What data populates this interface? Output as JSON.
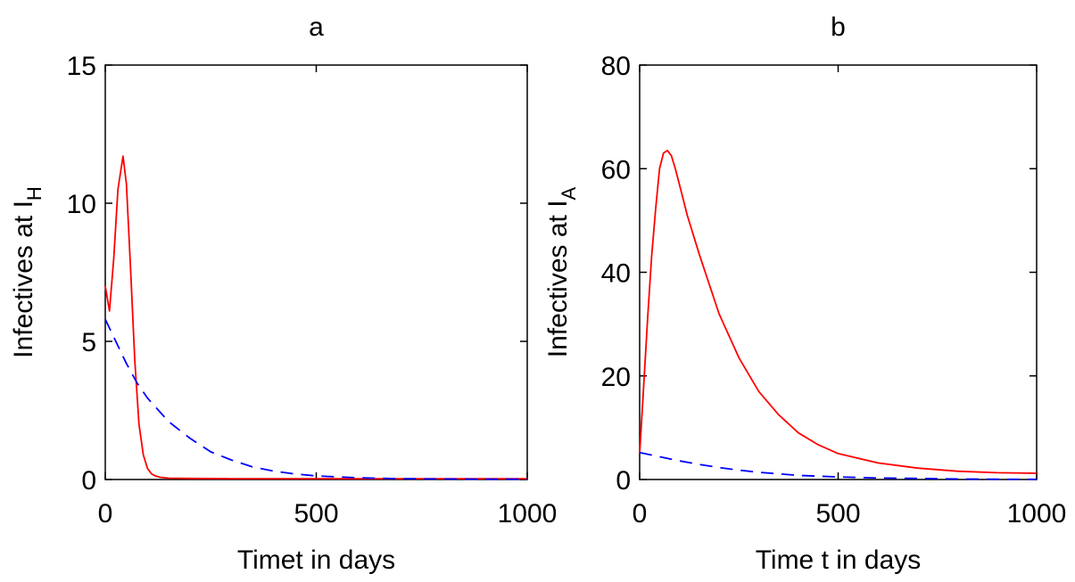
{
  "chart_data": [
    {
      "type": "line",
      "title": "a",
      "xlabel": "Timet in days",
      "ylabel": "Infectives at I",
      "ylabel_subscript": "H",
      "xlim": [
        0,
        1000
      ],
      "ylim": [
        0,
        15
      ],
      "xticks": [
        0,
        500,
        1000
      ],
      "yticks": [
        0,
        5,
        10,
        15
      ],
      "grid": false,
      "series": [
        {
          "color": "#ff0000",
          "style": "solid",
          "x": [
            0,
            10,
            20,
            30,
            42,
            50,
            60,
            70,
            80,
            90,
            100,
            110,
            120,
            130,
            150,
            200,
            300,
            500,
            700,
            1000
          ],
          "y": [
            7.0,
            6.1,
            8.0,
            10.5,
            11.7,
            10.7,
            7.6,
            4.3,
            2.0,
            0.9,
            0.4,
            0.2,
            0.12,
            0.08,
            0.05,
            0.04,
            0.03,
            0.03,
            0.03,
            0.03
          ]
        },
        {
          "color": "#0000ff",
          "style": "dashed",
          "x": [
            0,
            25,
            50,
            75,
            100,
            150,
            200,
            250,
            300,
            350,
            400,
            450,
            500,
            600,
            700,
            800,
            900,
            1000
          ],
          "y": [
            5.8,
            5.0,
            4.2,
            3.5,
            2.95,
            2.1,
            1.5,
            1.0,
            0.7,
            0.45,
            0.3,
            0.2,
            0.13,
            0.06,
            0.03,
            0.02,
            0.01,
            0.01
          ]
        }
      ]
    },
    {
      "type": "line",
      "title": "b",
      "xlabel": "Time t in days",
      "ylabel": "Infectives at I",
      "ylabel_subscript": "A",
      "xlim": [
        0,
        1000
      ],
      "ylim": [
        0,
        80
      ],
      "xticks": [
        0,
        500,
        1000
      ],
      "yticks": [
        0,
        20,
        40,
        60,
        80
      ],
      "grid": false,
      "series": [
        {
          "color": "#ff0000",
          "style": "solid",
          "x": [
            0,
            10,
            20,
            30,
            40,
            50,
            60,
            70,
            80,
            90,
            100,
            120,
            150,
            200,
            250,
            300,
            350,
            400,
            450,
            500,
            600,
            700,
            800,
            900,
            1000
          ],
          "y": [
            5,
            18,
            31,
            43,
            52,
            60,
            63,
            63.5,
            62.5,
            60,
            57,
            51,
            43.5,
            32,
            23.5,
            17,
            12.5,
            9,
            6.7,
            5,
            3.2,
            2.2,
            1.6,
            1.3,
            1.2
          ]
        },
        {
          "color": "#0000ff",
          "style": "dashed",
          "x": [
            0,
            50,
            100,
            150,
            200,
            250,
            300,
            400,
            500,
            600,
            700,
            800,
            900,
            1000
          ],
          "y": [
            5.2,
            4.4,
            3.6,
            2.9,
            2.3,
            1.8,
            1.4,
            0.8,
            0.5,
            0.3,
            0.2,
            0.1,
            0.05,
            0.03
          ]
        }
      ]
    }
  ]
}
